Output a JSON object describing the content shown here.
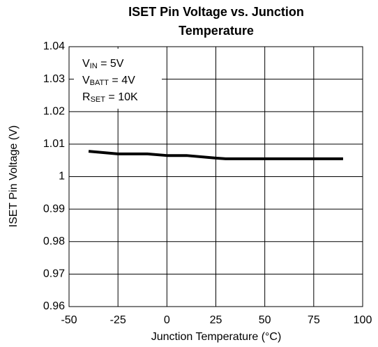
{
  "chart_data": {
    "type": "line",
    "title": [
      "ISET Pin Voltage vs. Junction",
      "Temperature"
    ],
    "x_label": "Junction Temperature (°C)",
    "y_label": "ISET Pin Voltage (V)",
    "annotations": [
      {
        "text": "V",
        "sub": "IN",
        "suffix": " = 5V"
      },
      {
        "text": "V",
        "sub": "BATT",
        "suffix": " = 4V"
      },
      {
        "text": "R",
        "sub": "SET",
        "suffix": " = 10K"
      }
    ],
    "series": [
      {
        "color": "#000000",
        "x": [
          -40,
          -25,
          -10,
          0,
          10,
          25,
          30,
          50,
          75,
          90
        ],
        "values": [
          1.0078,
          1.007,
          1.007,
          1.0065,
          1.0065,
          1.0057,
          1.0055,
          1.0055,
          1.0055,
          1.0055
        ]
      }
    ],
    "xlim": [
      -50,
      100
    ],
    "xticks": [
      -50,
      -25,
      0,
      25,
      50,
      75,
      100
    ],
    "ylim": [
      0.96,
      1.04
    ],
    "yticks": [
      0.96,
      0.97,
      0.98,
      0.99,
      1,
      1.01,
      1.02,
      1.03,
      1.04
    ],
    "grid": true
  }
}
